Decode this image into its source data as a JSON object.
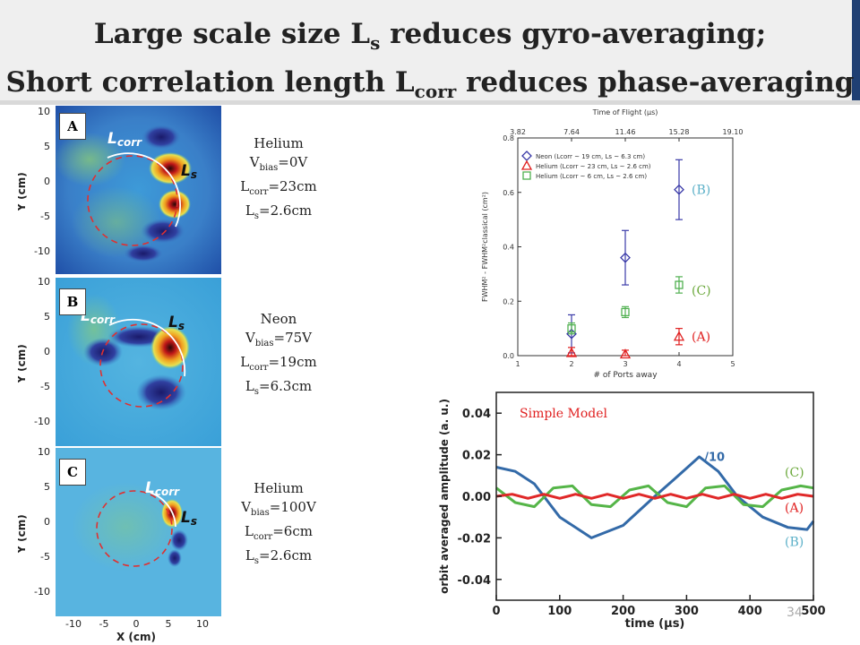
{
  "title": {
    "line1_main": "Large scale size L",
    "line1_sub": "s",
    "line1_rest": " reduces gyro-averaging;",
    "line2_main": "Short correlation length L",
    "line2_sub": "corr",
    "line2_rest": " reduces phase-averaging"
  },
  "panels": [
    {
      "letter": "A",
      "gas": "Helium",
      "vbias_label": "V",
      "vbias_sub": "bias",
      "vbias_value": "=0V",
      "lcorr_label": "L",
      "lcorr_sub": "corr",
      "lcorr_value": "=23cm",
      "ls_label": "L",
      "ls_sub": "s",
      "ls_value": "=2.6cm"
    },
    {
      "letter": "B",
      "gas": "Neon",
      "vbias_label": "V",
      "vbias_sub": "bias",
      "vbias_value": "=75V",
      "lcorr_label": "L",
      "lcorr_sub": "corr",
      "lcorr_value": "=19cm",
      "ls_label": "L",
      "ls_sub": "s",
      "ls_value": "=6.3cm"
    },
    {
      "letter": "C",
      "gas": "Helium",
      "vbias_label": "V",
      "vbias_sub": "bias",
      "vbias_value": "=100V",
      "lcorr_label": "L",
      "lcorr_sub": "corr",
      "lcorr_value": "=6cm",
      "ls_label": "L",
      "ls_sub": "s",
      "ls_value": "=2.6cm"
    }
  ],
  "image_labels": {
    "lcorr": "L",
    "lcorr_sub": "corr",
    "ls": "L",
    "ls_sub": "s",
    "y_label": "Y (cm)",
    "x_label": "X (cm)",
    "y_ticks": [
      "10",
      "5",
      "0",
      "-5",
      "-10"
    ],
    "x_ticks": [
      "-10",
      "-5",
      "0",
      "5",
      "10"
    ]
  },
  "chart_data": [
    {
      "type": "scatter",
      "title": "Time of Flight (μs)",
      "top_ticks": [
        "3.82",
        "7.64",
        "11.46",
        "15.28",
        "19.10"
      ],
      "xlabel": "# of Ports away",
      "ylabel": "FWHM² - FWHM²classical (cm²)",
      "xlim": [
        1,
        5
      ],
      "ylim": [
        0,
        0.8
      ],
      "x_ticks": [
        "1",
        "2",
        "3",
        "4",
        "5"
      ],
      "y_ticks": [
        "0.0",
        "0.2",
        "0.4",
        "0.6",
        "0.8"
      ],
      "legend_position": "top-left",
      "series": [
        {
          "name": "Neon (Lcorr ~ 19 cm, Ls ~ 6.3 cm)",
          "marker": "diamond",
          "color": "#3a3aa8",
          "x": [
            2,
            3,
            4
          ],
          "y": [
            0.08,
            0.36,
            0.61
          ],
          "err": [
            0.07,
            0.1,
            0.11
          ]
        },
        {
          "name": "Helium (Lcorr ~ 23 cm, Ls ~ 2.6 cm)",
          "marker": "triangle",
          "color": "#e02020",
          "x": [
            2,
            3,
            4
          ],
          "y": [
            0.01,
            0.005,
            0.07
          ],
          "err": [
            0.02,
            0.015,
            0.03
          ]
        },
        {
          "name": "Helium (Lcorr ~ 6 cm, Ls ~ 2.6 cm)",
          "marker": "square",
          "color": "#50b050",
          "x": [
            2,
            3,
            4
          ],
          "y": [
            0.1,
            0.16,
            0.26
          ],
          "err": [
            0.02,
            0.02,
            0.03
          ]
        }
      ],
      "annotations": [
        {
          "text": "(B)",
          "color": "#5bb0c8",
          "x": 4,
          "y": 0.61
        },
        {
          "text": "(C)",
          "color": "#6aa83a",
          "x": 4,
          "y": 0.24
        },
        {
          "text": "(A)",
          "color": "#e02020",
          "x": 4,
          "y": 0.07
        }
      ]
    },
    {
      "type": "line",
      "xlabel": "time (μs)",
      "ylabel": "orbit averaged amplitude (a. u.)",
      "xlim": [
        0,
        500
      ],
      "ylim": [
        -0.05,
        0.05
      ],
      "x_ticks": [
        "0",
        "100",
        "200",
        "300",
        "400",
        "500"
      ],
      "y_ticks": [
        "0.04",
        "0.02",
        "0.00",
        "-0.02",
        "-0.04"
      ],
      "annotation_model": "Simple Model",
      "annotation_div10": "/10",
      "series": [
        {
          "label": "(B)",
          "color": "#336aa8",
          "label_color": "#5bb0c8",
          "x": [
            0,
            30,
            60,
            100,
            150,
            200,
            250,
            280,
            320,
            350,
            380,
            420,
            460,
            490,
            500
          ],
          "y": [
            0.014,
            0.012,
            0.006,
            -0.01,
            -0.02,
            -0.014,
            0.0,
            0.008,
            0.019,
            0.012,
            0.0,
            -0.01,
            -0.015,
            -0.016,
            -0.012
          ]
        },
        {
          "label": "(C)",
          "color": "#55b548",
          "label_color": "#6aa83a",
          "x": [
            0,
            30,
            60,
            90,
            120,
            150,
            180,
            210,
            240,
            270,
            300,
            330,
            360,
            390,
            420,
            450,
            480,
            500
          ],
          "y": [
            0.004,
            -0.003,
            -0.005,
            0.004,
            0.005,
            -0.004,
            -0.005,
            0.003,
            0.005,
            -0.003,
            -0.005,
            0.004,
            0.005,
            -0.004,
            -0.005,
            0.003,
            0.005,
            0.004
          ]
        },
        {
          "label": "(A)",
          "color": "#e02828",
          "label_color": "#e02020",
          "x": [
            0,
            25,
            50,
            75,
            100,
            125,
            150,
            175,
            200,
            225,
            250,
            275,
            300,
            325,
            350,
            375,
            400,
            425,
            450,
            475,
            500
          ],
          "y": [
            0.0,
            0.001,
            -0.001,
            0.001,
            -0.001,
            0.001,
            -0.001,
            0.001,
            -0.001,
            0.001,
            -0.001,
            0.001,
            -0.001,
            0.001,
            -0.001,
            0.001,
            -0.001,
            0.001,
            -0.001,
            0.001,
            0.0
          ]
        }
      ]
    }
  ],
  "page_number": "34"
}
